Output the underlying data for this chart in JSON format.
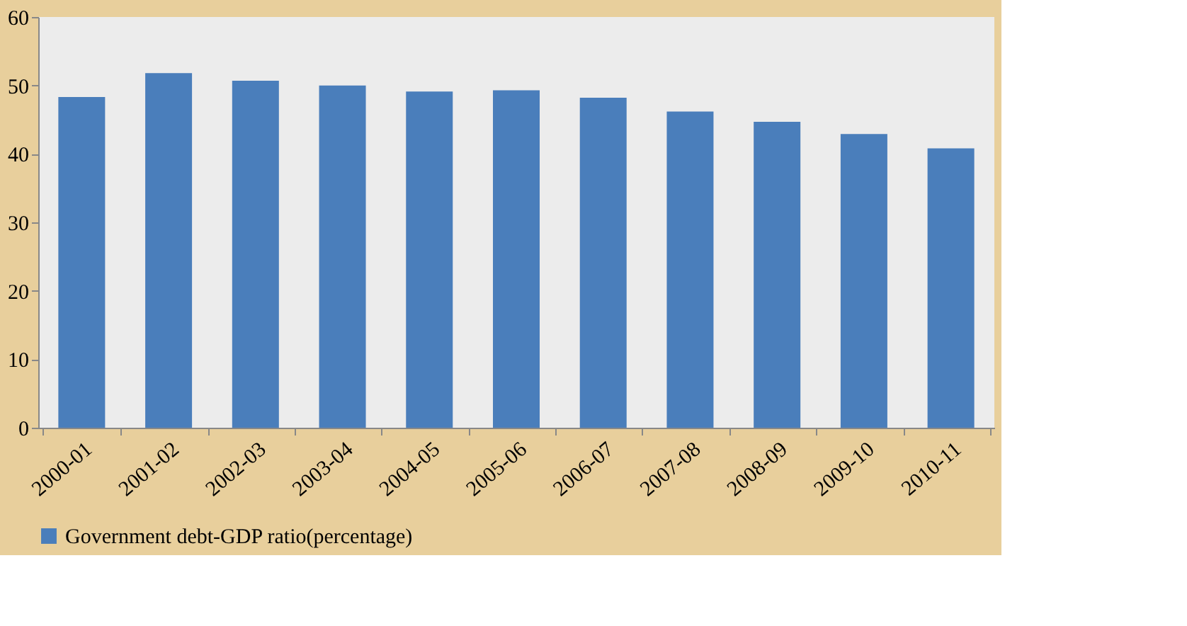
{
  "chart_data": {
    "type": "bar",
    "categories": [
      "2000-01",
      "2001-02",
      "2002-03",
      "2003-04",
      "2004-05",
      "2005-06",
      "2006-07",
      "2007-08",
      "2008-09",
      "2009-10",
      "2010-11"
    ],
    "series": [
      {
        "name": "Government debt-GDP ratio(percentage)",
        "color": "#4a7ebb",
        "values": [
          48.3,
          51.8,
          50.7,
          50.0,
          49.1,
          49.3,
          48.2,
          46.2,
          44.7,
          42.9,
          40.8
        ]
      }
    ],
    "ylim": [
      0,
      60
    ],
    "yticks": [
      0,
      10,
      20,
      30,
      40,
      50,
      60
    ],
    "grid": false,
    "legend": "bottom"
  }
}
